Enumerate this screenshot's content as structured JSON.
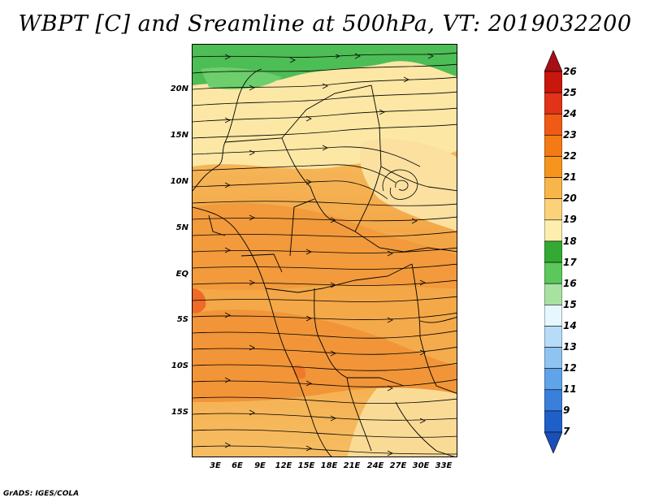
{
  "title": "WBPT [C] and Sreamline at 500hPa, VT: 2019032200",
  "footer": "GrADS: IGES/COLA",
  "map": {
    "lat_labels": [
      "20N",
      "15N",
      "10N",
      "5N",
      "EQ",
      "5S",
      "10S",
      "15S"
    ],
    "lon_labels": [
      "3E",
      "6E",
      "9E",
      "12E",
      "15E",
      "18E",
      "21E",
      "24E",
      "27E",
      "30E",
      "33E"
    ],
    "shaded_variable": "WBPT [C]",
    "vector_field": "Streamline",
    "level": "500hPa",
    "valid_time": "2019032200"
  },
  "colorbar": {
    "levels": [
      "26",
      "25",
      "24",
      "23",
      "22",
      "21",
      "20",
      "19",
      "18",
      "17",
      "16",
      "15",
      "14",
      "13",
      "12",
      "11",
      "9",
      "7"
    ],
    "colors": [
      "#a50f15",
      "#c8170c",
      "#e0331a",
      "#f05a14",
      "#f47a14",
      "#f6951c",
      "#f8b54a",
      "#fbd27a",
      "#fdeeb0",
      "#33aa33",
      "#5cc85c",
      "#a8e2a0",
      "#e6f7ff",
      "#b7dcf7",
      "#8fc3f0",
      "#5fa3e8",
      "#3a7fd9",
      "#1f5fc8",
      "#1a4fb8"
    ]
  }
}
